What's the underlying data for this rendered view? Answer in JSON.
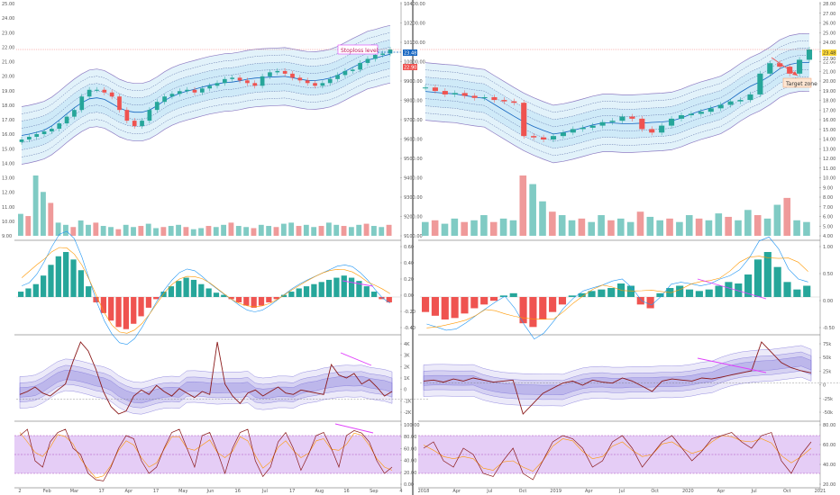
{
  "colors": {
    "up": "#26a69a",
    "down": "#ef5350",
    "vol_up": "#80cbc4",
    "vol_down": "#ef9a9a",
    "band_outer": "#8e7cc3",
    "band_fill": "#bfe3f5",
    "mid": "#1565c0",
    "price_line": "#ef5350",
    "oscillator_line": "#8b1a1a",
    "osc_band": "#7e74d9",
    "stoch_fill": "#e1c4f5",
    "trend_line": "#e040fb",
    "macd_fast": "#2196f3",
    "macd_slow": "#ff9800"
  },
  "chart_data": [
    {
      "type": "candlestick",
      "panel": "left-price",
      "y_ticks": [
        "10400.00",
        "10200.00",
        "10100.00",
        "10000.00",
        "9900.00",
        "9800.00",
        "9700.00",
        "9600.00",
        "9500.00",
        "9400.00",
        "9300.00",
        "9200.00",
        "9100.00"
      ],
      "y_right_ticks": [
        "25.00",
        "24.00",
        "23.00",
        "22.00",
        "21.00",
        "20.00",
        "19.00",
        "18.00",
        "17.00",
        "16.00",
        "15.00",
        "14.00",
        "13.00",
        "12.00",
        "11.00",
        "10.00",
        "9.00"
      ],
      "x_ticks": [
        "2",
        "Feb",
        "Mar",
        "17",
        "Apr",
        "17",
        "May",
        "Jun",
        "16",
        "Jul",
        "17",
        "Aug",
        "16",
        "Sep",
        "4"
      ],
      "price_labels": [
        "23.48",
        "22.90"
      ],
      "annotations": [
        "Stoploss level"
      ],
      "close": [
        9480,
        9500,
        9520,
        9540,
        9560,
        9600,
        9650,
        9700,
        9800,
        9850,
        9850,
        9830,
        9800,
        9700,
        9620,
        9580,
        9620,
        9700,
        9760,
        9800,
        9820,
        9840,
        9850,
        9830,
        9860,
        9880,
        9900,
        9930,
        9940,
        9920,
        9900,
        9880,
        9950,
        9980,
        9990,
        9970,
        9940,
        9920,
        9900,
        9880,
        9900,
        9930,
        9960,
        9990,
        10000,
        10050,
        10080,
        10110,
        10120,
        10150
      ]
    },
    {
      "type": "candlestick",
      "panel": "right-price",
      "y_ticks": [
        "28.00",
        "27.00",
        "26.00",
        "25.00",
        "24.00",
        "23.00",
        "22.00",
        "21.00",
        "20.00",
        "19.00",
        "18.00",
        "17.00",
        "16.00",
        "15.00",
        "14.00",
        "13.00",
        "12.00",
        "11.00",
        "10.00",
        "9.00",
        "8.00",
        "7.00",
        "6.00",
        "5.00",
        "4.00"
      ],
      "x_ticks": [
        "2018",
        "Apr",
        "Jul",
        "Oct",
        "2019",
        "Apr",
        "Jul",
        "Oct",
        "2020",
        "Apr",
        "Jul",
        "Oct",
        "2021"
      ],
      "price_labels": [
        "23.48",
        "22.90"
      ],
      "annotations": [
        "Target zone"
      ],
      "close": [
        18,
        17.5,
        17,
        17.2,
        16.8,
        16.5,
        16.6,
        16.2,
        16,
        15.8,
        11,
        10.8,
        10.5,
        11,
        11.5,
        12,
        12.2,
        12.5,
        13,
        13.2,
        13.8,
        13.5,
        12,
        11.5,
        12.5,
        13.5,
        14,
        14.2,
        14.5,
        15,
        15.5,
        16,
        16.2,
        17,
        20,
        21.5,
        21,
        20,
        22,
        23.48
      ]
    },
    {
      "type": "bar",
      "panel": "left-volume",
      "y_ticks": [
        "6.00",
        "5.00",
        "4.00",
        "3.00",
        "2.00",
        "1.00"
      ],
      "values": [
        20,
        18,
        55,
        40,
        30,
        12,
        10,
        8,
        14,
        10,
        12,
        9,
        8,
        6,
        10,
        8,
        9,
        11,
        7,
        8,
        9,
        10,
        8,
        6,
        7,
        9,
        8,
        10,
        12,
        9,
        8,
        7,
        10,
        9,
        8,
        11,
        12,
        9,
        10,
        8,
        9,
        12,
        10,
        9,
        8,
        10,
        11,
        9,
        8,
        10
      ]
    },
    {
      "type": "bar",
      "panel": "right-volume",
      "y_ticks": [
        "9.00",
        "8.00",
        "7.00",
        "6.00",
        "5.00",
        "4.00"
      ],
      "values": [
        8,
        9,
        7,
        10,
        8,
        9,
        12,
        8,
        10,
        9,
        35,
        30,
        20,
        14,
        12,
        9,
        10,
        8,
        12,
        9,
        10,
        8,
        14,
        11,
        9,
        10,
        8,
        12,
        10,
        9,
        13,
        11,
        9,
        15,
        12,
        10,
        18,
        22,
        9,
        8
      ]
    },
    {
      "type": "bar",
      "panel": "left-macd",
      "y_ticks": [
        "0.60",
        "0.40",
        "0.20",
        "0.00",
        "-0.20",
        "-0.40"
      ],
      "values": [
        0.05,
        0.08,
        0.12,
        0.2,
        0.3,
        0.38,
        0.42,
        0.35,
        0.25,
        0.1,
        -0.05,
        -0.15,
        -0.22,
        -0.28,
        -0.3,
        -0.25,
        -0.18,
        -0.1,
        -0.02,
        0.05,
        0.1,
        0.15,
        0.18,
        0.16,
        0.12,
        0.08,
        0.04,
        0.02,
        -0.02,
        -0.05,
        -0.08,
        -0.1,
        -0.08,
        -0.05,
        -0.02,
        0.02,
        0.05,
        0.08,
        0.1,
        0.12,
        0.14,
        0.16,
        0.18,
        0.2,
        0.18,
        0.15,
        0.1,
        0.05,
        -0.02,
        -0.05
      ]
    },
    {
      "type": "bar",
      "panel": "right-macd",
      "y_ticks": [
        "1.00",
        "0.50",
        "0.00",
        "-0.50"
      ],
      "values": [
        -0.2,
        -0.25,
        -0.3,
        -0.28,
        -0.22,
        -0.15,
        -0.1,
        -0.05,
        0.02,
        0.05,
        -0.35,
        -0.4,
        -0.3,
        -0.2,
        -0.1,
        0.02,
        0.05,
        0.08,
        0.1,
        0.12,
        0.18,
        0.15,
        -0.1,
        -0.15,
        0.05,
        0.12,
        0.15,
        0.1,
        0.08,
        0.1,
        0.15,
        0.2,
        0.18,
        0.3,
        0.5,
        0.6,
        0.4,
        0.2,
        0.1,
        0.15
      ]
    },
    {
      "type": "line",
      "panel": "left-oscillator",
      "y_ticks": [
        "4K",
        "3K",
        "2K",
        "1K",
        "0",
        "-1K",
        "-2K"
      ],
      "values": [
        0.3,
        0.5,
        0.8,
        0.4,
        0.2,
        0.6,
        1.0,
        2.5,
        3.8,
        3.2,
        2.0,
        0.5,
        -0.5,
        -1.0,
        -0.8,
        0.2,
        0.6,
        0.3,
        0.9,
        0.5,
        0.2,
        0.7,
        0.4,
        0.1,
        0.5,
        0.3,
        3.8,
        1.0,
        0.2,
        -0.3,
        0.4,
        0.6,
        0.2,
        0.5,
        0.8,
        0.4,
        0.3,
        0.6,
        0.5,
        0.4,
        0.3,
        2.3,
        1.6,
        1.4,
        1.7,
        1.0,
        1.3,
        0.8,
        0.2,
        0.5
      ]
    },
    {
      "type": "line",
      "panel": "right-oscillator",
      "y_ticks": [
        "75k",
        "50k",
        "25k",
        "0",
        "-25k",
        "-50k"
      ],
      "values": [
        2,
        3,
        1,
        4,
        2,
        5,
        3,
        1,
        2,
        3,
        -30,
        -20,
        -10,
        -5,
        0,
        2,
        -2,
        3,
        1,
        0,
        5,
        2,
        -3,
        -8,
        2,
        4,
        3,
        2,
        5,
        4,
        6,
        8,
        10,
        12,
        40,
        30,
        20,
        15,
        12,
        10
      ]
    },
    {
      "type": "line",
      "panel": "left-stochastic",
      "y_ticks": [
        "100.00",
        "80.00",
        "60.00",
        "40.00",
        "20.00",
        "0.00"
      ],
      "values": [
        80,
        90,
        40,
        30,
        70,
        85,
        90,
        60,
        50,
        20,
        10,
        8,
        30,
        60,
        80,
        75,
        40,
        20,
        30,
        60,
        85,
        90,
        60,
        30,
        80,
        85,
        55,
        20,
        60,
        85,
        90,
        40,
        15,
        30,
        70,
        85,
        60,
        25,
        50,
        80,
        85,
        60,
        30,
        80,
        88,
        84,
        70,
        40,
        20,
        30
      ]
    },
    {
      "type": "line",
      "panel": "right-stochastic",
      "y_ticks": [
        "80.00",
        "60.00",
        "40.00",
        "20.00"
      ],
      "values": [
        60,
        70,
        40,
        30,
        60,
        50,
        20,
        15,
        40,
        60,
        20,
        10,
        40,
        70,
        80,
        75,
        60,
        30,
        40,
        70,
        80,
        60,
        30,
        50,
        70,
        80,
        60,
        40,
        55,
        75,
        80,
        85,
        70,
        60,
        80,
        85,
        40,
        20,
        50,
        70
      ]
    }
  ]
}
